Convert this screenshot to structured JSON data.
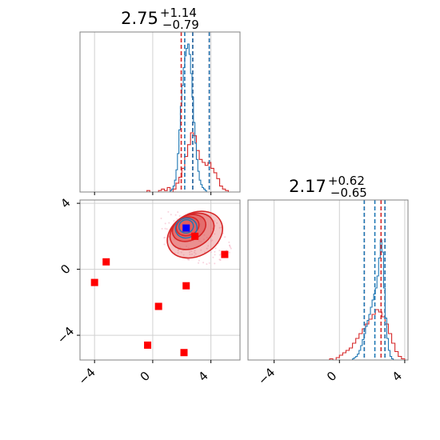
{
  "chart_data": {
    "type": "corner",
    "colors": {
      "blue": "#1f77b4",
      "red": "#d62728",
      "red_fill": "#e05a5a",
      "red_marker": "#ff0000",
      "truth_marker": "#0000ff",
      "grid": "#d0d0d0",
      "frame": "#808080"
    },
    "panels": {
      "top_hist": {
        "title": {
          "main": "2.75",
          "sup": "+1.14",
          "sub": "−0.79"
        },
        "xlim": [
          -5,
          6
        ],
        "blue_hist": {
          "bin_start": 1.2,
          "bin_width": 0.1,
          "counts": [
            0.01,
            0.02,
            0.04,
            0.08,
            0.15,
            0.26,
            0.42,
            0.58,
            0.72,
            0.84,
            0.92,
            0.97,
            1.0,
            0.93,
            0.8,
            0.64,
            0.47,
            0.33,
            0.22,
            0.14,
            0.08,
            0.05,
            0.03,
            0.02,
            0.01
          ]
        },
        "red_hist": {
          "bin_start": -0.4,
          "bin_width": 0.2,
          "counts": [
            0.01,
            0.0,
            0.0,
            0.0,
            0.01,
            0.02,
            0.01,
            0.03,
            0.0,
            0.02,
            0.06,
            0.1,
            0.16,
            0.24,
            0.32,
            0.4,
            0.38,
            0.28,
            0.22,
            0.2,
            0.18,
            0.2,
            0.16,
            0.13,
            0.09,
            0.04,
            0.02,
            0.01,
            0.0,
            0.0
          ]
        },
        "blue_quantiles": [
          2.2,
          2.75,
          3.89
        ],
        "red_quantiles": [
          1.96,
          2.75,
          3.89
        ]
      },
      "scatter": {
        "xlim": [
          -5,
          6
        ],
        "ylim": [
          -5.5,
          4.2
        ],
        "x_ticks": [
          -4,
          0,
          4
        ],
        "y_ticks": [
          -4,
          0,
          4
        ],
        "red_contours": [
          {
            "cx": 2.9,
            "cy": 2.1,
            "rx": 2.0,
            "ry": 1.3,
            "rot": -28
          },
          {
            "cx": 2.7,
            "cy": 2.3,
            "rx": 1.6,
            "ry": 1.0,
            "rot": -28
          },
          {
            "cx": 2.5,
            "cy": 2.5,
            "rx": 1.2,
            "ry": 0.75,
            "rot": -25
          },
          {
            "cx": 2.4,
            "cy": 2.6,
            "rx": 0.8,
            "ry": 0.55,
            "rot": -20
          }
        ],
        "blue_contours": [
          {
            "cx": 2.3,
            "cy": 2.5,
            "rx": 0.75,
            "ry": 0.6,
            "rot": -15
          },
          {
            "cx": 2.3,
            "cy": 2.6,
            "rx": 0.5,
            "ry": 0.4,
            "rot": -15
          }
        ],
        "red_points": [
          {
            "x": 4.95,
            "y": 0.9
          },
          {
            "x": 2.9,
            "y": 2.0
          },
          {
            "x": -3.2,
            "y": 0.45
          },
          {
            "x": -4.0,
            "y": -0.8
          },
          {
            "x": 2.3,
            "y": -1.0
          },
          {
            "x": 0.4,
            "y": -2.25
          },
          {
            "x": -0.35,
            "y": -4.6
          },
          {
            "x": 2.15,
            "y": -5.05
          }
        ],
        "truth_point": {
          "x": 2.3,
          "y": 2.5
        }
      },
      "right_hist": {
        "title": {
          "main": "2.17",
          "sup": "+0.62",
          "sub": "−0.65"
        },
        "xlim": [
          -5.6,
          4.2
        ],
        "x_ticks": [
          -4,
          0,
          4
        ],
        "blue_hist": {
          "bin_start": 0.8,
          "bin_width": 0.1,
          "counts": [
            0.01,
            0.02,
            0.03,
            0.05,
            0.08,
            0.12,
            0.17,
            0.22,
            0.28,
            0.33,
            0.38,
            0.44,
            0.5,
            0.55,
            0.6,
            0.7,
            0.85,
            1.0,
            0.9,
            0.6,
            0.35,
            0.18,
            0.08,
            0.03,
            0.01
          ]
        },
        "red_hist": {
          "bin_start": -0.6,
          "bin_width": 0.2,
          "counts": [
            0.01,
            0.0,
            0.02,
            0.04,
            0.06,
            0.08,
            0.1,
            0.14,
            0.18,
            0.22,
            0.26,
            0.3,
            0.34,
            0.38,
            0.42,
            0.4,
            0.36,
            0.3,
            0.22,
            0.14,
            0.07,
            0.03,
            0.01
          ]
        },
        "blue_quantiles": [
          1.52,
          2.17,
          2.79
        ],
        "red_quantiles": [
          1.52,
          2.55,
          2.79
        ]
      }
    }
  }
}
